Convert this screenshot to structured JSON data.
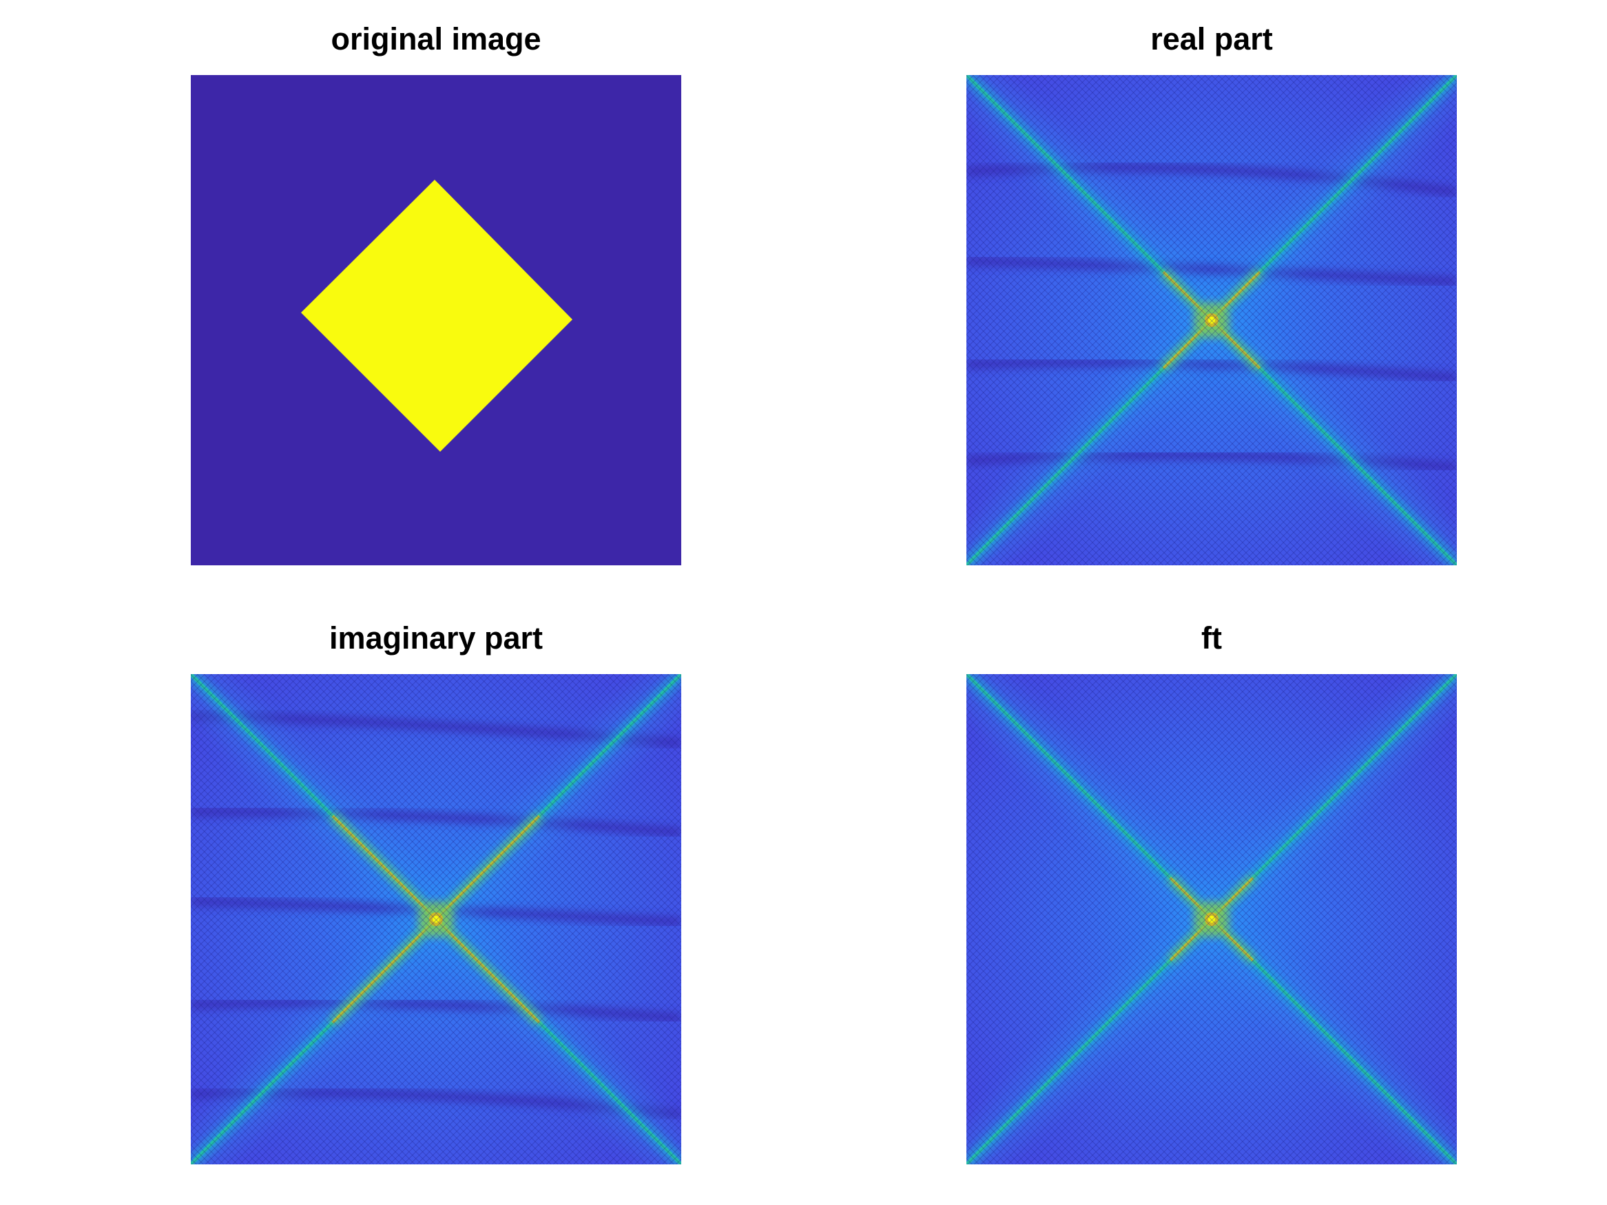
{
  "figure": {
    "colors": {
      "background": "#3D26A8",
      "foreground": "#F9FB0E",
      "colormap": [
        "#3E26A8",
        "#4743E0",
        "#2E87F7",
        "#1AB1D4",
        "#24C5A1",
        "#80CB58",
        "#D4BB22",
        "#F9FB0E"
      ]
    }
  },
  "chart_data": [
    {
      "type": "heatmap",
      "title": "original image",
      "content": "binary diamond (rotated square) centered in the frame",
      "values_range": [
        0,
        1
      ],
      "axes_visible": false
    },
    {
      "type": "heatmap",
      "title": "real part",
      "content": "magnitude of the real part of the 2D Fourier transform; bright X pattern along both diagonals with a peak at the center",
      "axes_visible": false
    },
    {
      "type": "heatmap",
      "title": "imaginary part",
      "content": "magnitude of the imaginary part of the 2D Fourier transform; bright X pattern along both diagonals with a peak at the center",
      "axes_visible": false
    },
    {
      "type": "heatmap",
      "title": "ft",
      "content": "magnitude of the 2D Fourier transform; clean X pattern along both diagonals with a peak at the center",
      "axes_visible": false
    }
  ]
}
